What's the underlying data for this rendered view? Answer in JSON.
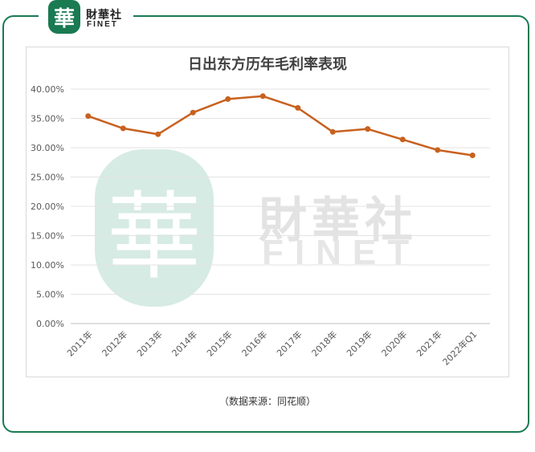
{
  "brand": {
    "logo_glyph": "華",
    "name_cn": "財華社",
    "name_en": "FINET",
    "color": "#1a7a52"
  },
  "watermark": {
    "glyph": "華",
    "name_cn": "財華社",
    "name_en": "FINET"
  },
  "source_note": "（数据来源：同花顺）",
  "chart_data": {
    "type": "line",
    "title": "日出东方历年毛利率表现",
    "xlabel": "",
    "ylabel": "",
    "categories": [
      "2011年",
      "2012年",
      "2013年",
      "2014年",
      "2015年",
      "2016年",
      "2017年",
      "2018年",
      "2019年",
      "2020年",
      "2021年",
      "2022年Q1"
    ],
    "series": [
      {
        "values": [
          35.4,
          33.3,
          32.3,
          36.0,
          38.3,
          38.8,
          36.8,
          32.7,
          33.2,
          31.4,
          29.6,
          28.7
        ],
        "color": "#c8611f"
      }
    ],
    "ylim": [
      0,
      40
    ],
    "yticks": [
      0,
      5,
      10,
      15,
      20,
      25,
      30,
      35,
      40
    ],
    "ytick_labels": [
      "0.00%",
      "5.00%",
      "10.00%",
      "15.00%",
      "20.00%",
      "25.00%",
      "30.00%",
      "35.00%",
      "40.00%"
    ],
    "grid": true,
    "legend": "none"
  }
}
